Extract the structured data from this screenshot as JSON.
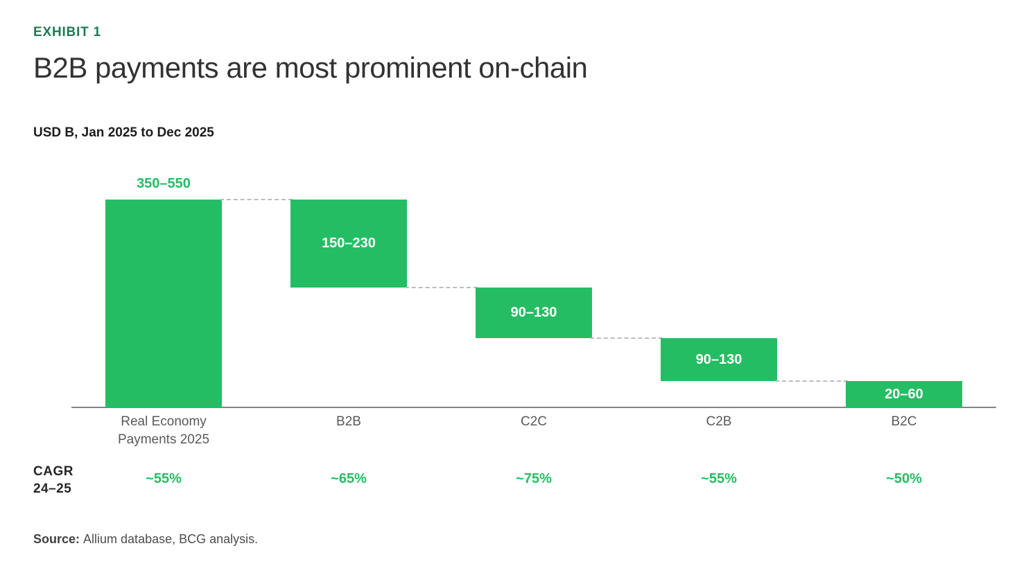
{
  "header": {
    "exhibit_label": "EXHIBIT 1",
    "title": "B2B payments are most prominent on-chain",
    "subtitle": "USD B, Jan 2025 to Dec 2025"
  },
  "footer": {
    "source_label": "Source:",
    "source_text": "Allium database, BCG analysis."
  },
  "colors": {
    "bar_green": "#24bd64",
    "value_text_green": "#24bd64",
    "exhibit_green": "#1e7b51"
  },
  "chart_data": {
    "type": "bar",
    "subtype": "waterfall",
    "title": "B2B payments are most prominent on-chain",
    "value_unit": "USD B",
    "period": "Jan 2025 to Dec 2025",
    "categories": [
      "Real Economy Payments 2025",
      "B2B",
      "C2C",
      "C2B",
      "B2C"
    ],
    "series": [
      {
        "value_labels": [
          "350–550",
          "150–230",
          "90–130",
          "90–130",
          "20–60"
        ],
        "value_ranges": [
          [
            350,
            550
          ],
          [
            150,
            230
          ],
          [
            90,
            130
          ],
          [
            90,
            130
          ],
          [
            20,
            60
          ]
        ],
        "value_midpoints": [
          450,
          190,
          110,
          110,
          40
        ]
      }
    ],
    "cagr_row": {
      "label": "CAGR 24–25",
      "values": [
        "~55%",
        "~65%",
        "~75%",
        "~55%",
        "~50%"
      ]
    },
    "ylim": [
      0,
      550
    ],
    "grid": false,
    "legend": false,
    "baseline_axis": true
  }
}
